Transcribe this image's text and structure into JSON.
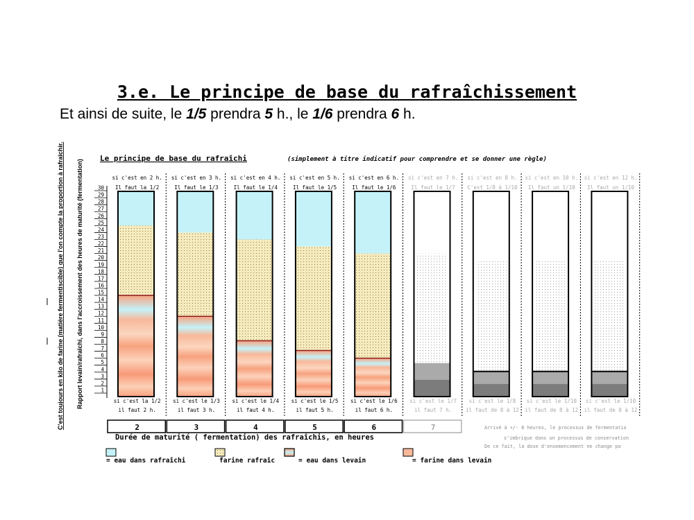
{
  "slide": {
    "title": "3.e. Le principe de base du rafraîchissement",
    "subtitle": {
      "p1": "Et ainsi de suite, le ",
      "b1": "1/5",
      "p2": " prendra ",
      "b2": "5",
      "p3": " h., le ",
      "b3": "1/6",
      "p4": " prendra ",
      "b4": "6",
      "p5": " h."
    }
  },
  "chart_data": {
    "type": "bar",
    "title": "Le principe de base du rafraîchi",
    "title_note": "(simplement à titre indicatif pour comprendre et se donner une règle)",
    "ylabel_outer": "C'est toujours en kilo de farine (matière fermentiscible) que l'on compte la proportion à rafraîchir.",
    "ylabel_inner": "Rapport levain/rafraîchi, dans l'accroissement des heures de maturité (fermentation)",
    "ylim": [
      0,
      30
    ],
    "y_ticks": [
      "1",
      "2",
      "3",
      "4",
      "5",
      "6",
      "7",
      "8",
      "9",
      "10",
      "11",
      "12",
      "13",
      "14",
      "15",
      "16",
      "17",
      "18",
      "19",
      "20",
      "21",
      "22",
      "23",
      "24",
      "25",
      "26",
      "27",
      "28",
      "29",
      "30"
    ],
    "xlabel": "Durée de maturité ( fermentation) des rafraîchis, en heures",
    "x_ticks": [
      "2",
      "3",
      "4",
      "5",
      "6",
      "7"
    ],
    "note_lines": [
      "Arrivé à +/- 8 heures, le processus de fermentatio",
      "s'imbrique dans un processus de conservation",
      "De ce fait, la dose d'ensemencement ne change pa"
    ],
    "legend": [
      "= eau dans rafraîchi",
      "farine rafraîc",
      "= eau dans levain",
      "= farine dans levain"
    ],
    "colors": {
      "eau_rafraichi": "#c4f2f8",
      "farine_rafraichi": "#f6ebbe",
      "levain_light": "#fcd6bf",
      "levain_mid": "#f7a27f",
      "levain_blue": "#c4f2f8",
      "gray_dark": "#7c7c7c",
      "gray_light": "#aaaaaa"
    },
    "columns": [
      {
        "top": "si c'est en 2 h.",
        "rule": "Il faut la 1/2",
        "bottom": "si c'est la 1/2",
        "hours_text": "il faut 2 h.",
        "levain": 14.5,
        "farine_top": 24.5,
        "faded": false
      },
      {
        "top": "si c'est en 3 h.",
        "rule": "Il faut le 1/3",
        "bottom": "si c'est le 1/3",
        "hours_text": "il faut 3 h.",
        "levain": 11.5,
        "farine_top": 23.5,
        "faded": false
      },
      {
        "top": "si c'est en 4 h.",
        "rule": "Il faut le 1/4",
        "bottom": "si c'est le 1/4",
        "hours_text": "il faut 4 h.",
        "levain": 8.0,
        "farine_top": 22.5,
        "faded": false
      },
      {
        "top": "si c'est en 5 h.",
        "rule": "Il faut le 1/5",
        "bottom": "si c'est le 1/5",
        "hours_text": "il faut 5 h.",
        "levain": 6.6,
        "farine_top": 21.5,
        "faded": false
      },
      {
        "top": "si c'est en 6 h.",
        "rule": "Il faut le 1/6",
        "bottom": "si c'est le 1/6",
        "hours_text": "il faut 6 h.",
        "levain": 5.5,
        "farine_top": 20.5,
        "faded": false
      },
      {
        "top": "si c'est en 7 h.",
        "rule": "Il faut le 1/7",
        "bottom": "si c'est le 1/7",
        "hours_text": "il faut 7 h.",
        "gray": 4.8,
        "faded": true
      },
      {
        "top": "si c'est en 8 h.",
        "rule": "C'est 1/8 à 1/10",
        "bottom": "si c'est le 1/8",
        "hours_text": "il faut de 8 à 12",
        "gray": 3.6,
        "faded": true
      },
      {
        "top": "si c'est en 10 h.",
        "rule": "Il faut un 1/10",
        "bottom": "si c'est le 1/10",
        "hours_text": "il faut de 8 à 12",
        "gray": 3.6,
        "faded": true
      },
      {
        "top": "si c'est en 12 h.",
        "rule": "Il faut un 1/10",
        "bottom": "si c'est le 1/10",
        "hours_text": "il faut de 8 à 12",
        "gray": 3.6,
        "faded": true
      }
    ]
  }
}
